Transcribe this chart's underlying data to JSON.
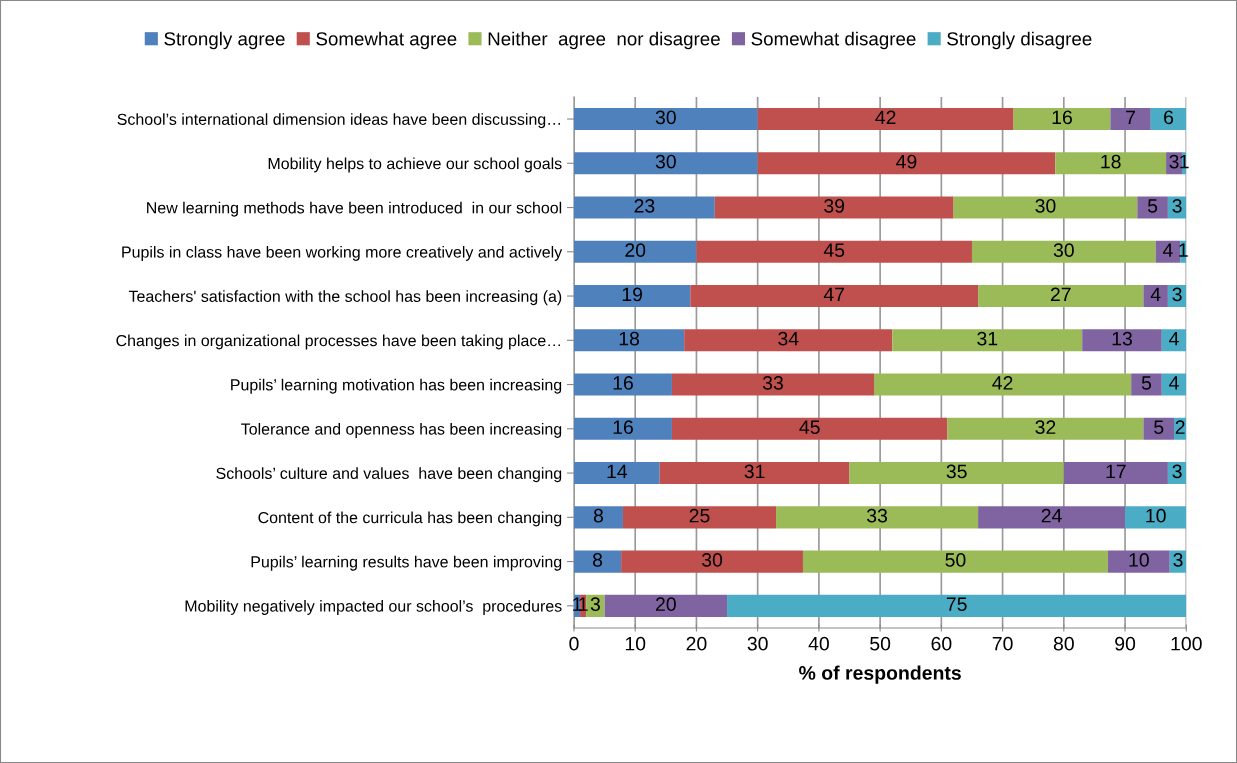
{
  "chart_data": {
    "type": "bar",
    "orientation": "horizontal",
    "stacked": true,
    "xlabel": "% of respondents",
    "categories": [
      "School’s international dimension ideas have been discussing…",
      "Mobility helps to achieve our school goals",
      "New learning methods have been introduced  in our school",
      "Pupils in class have been working more creatively and actively",
      "Teachers' satisfaction with the school has been increasing (a)",
      "Changes in organizational processes have been taking place…",
      "Pupils’ learning motivation has been increasing",
      "Tolerance and openness has been increasing",
      "Schools’ culture and values  have been changing",
      "Content of the curricula has been changing",
      "Pupils’ learning results have been improving",
      "Mobility negatively impacted our school’s  procedures"
    ],
    "series": [
      {
        "name": "Strongly agree",
        "color": "#4f81bd",
        "values": [
          30,
          30,
          23,
          20,
          19,
          18,
          16,
          16,
          14,
          8,
          7.7,
          1
        ],
        "value_labels": [
          "30",
          "30",
          "23",
          "20",
          "19",
          "18",
          "16",
          "16",
          "14",
          "8",
          "8",
          "1"
        ]
      },
      {
        "name": "Somewhat agree",
        "color": "#c0504d",
        "values": [
          41.8,
          48.6,
          39,
          45,
          47,
          34,
          33,
          45,
          31,
          25,
          29.7,
          1
        ],
        "value_labels": [
          "42",
          "49",
          "39",
          "45",
          "47",
          "34",
          "33",
          "45",
          "31",
          "25",
          "30",
          "1"
        ]
      },
      {
        "name": "Neither  agree  nor disagree",
        "color": "#9bbb59",
        "values": [
          15.8,
          18.1,
          30,
          30,
          27,
          31,
          42,
          32,
          35,
          33,
          49.8,
          3
        ],
        "value_labels": [
          "16",
          "18",
          "30",
          "30",
          "27",
          "31",
          "42",
          "32",
          "35",
          "33",
          "50",
          "3"
        ]
      },
      {
        "name": "Somewhat disagree",
        "color": "#8064a2",
        "values": [
          6.6,
          2.6,
          5,
          4,
          4,
          13,
          5,
          5,
          17,
          24,
          10.1,
          20
        ],
        "value_labels": [
          "7",
          "3",
          "5",
          "4",
          "4",
          "13",
          "5",
          "5",
          "17",
          "24",
          "10",
          "20"
        ]
      },
      {
        "name": "Strongly disagree",
        "color": "#4bacc6",
        "values": [
          5.8,
          0.7,
          3,
          1,
          3,
          4,
          4,
          2,
          3,
          10,
          2.7,
          75
        ],
        "value_labels": [
          "6",
          "1",
          "3",
          "1",
          "3",
          "4",
          "4",
          "2",
          "3",
          "10",
          "3",
          "75"
        ]
      }
    ],
    "xlim": [
      0,
      100
    ],
    "xticks": [
      0,
      10,
      20,
      30,
      40,
      50,
      60,
      70,
      80,
      90,
      100
    ],
    "grid": "x",
    "legend": "top"
  }
}
